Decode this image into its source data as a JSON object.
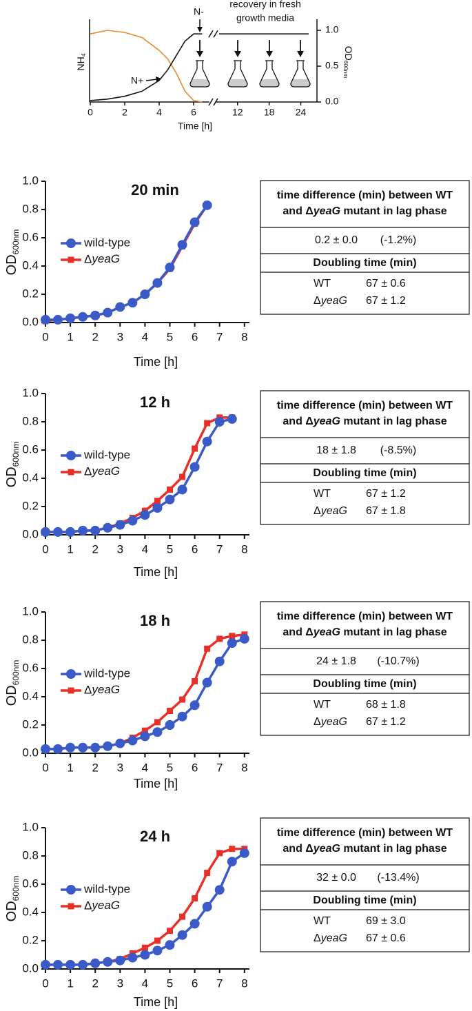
{
  "chart_data": [
    {
      "type": "line",
      "ylabel": {
        "text": "NH",
        "sub": "4"
      },
      "y2label": {
        "text": "OD",
        "sub": "600nm"
      },
      "xlabel": "Time [h]",
      "x": [
        0,
        1,
        2,
        3,
        4,
        4.5,
        5,
        5.5,
        6,
        6.5,
        7.5,
        8.5,
        25.5
      ],
      "xlim": [
        0,
        25.5
      ],
      "xbreak": [
        6.5,
        8.5
      ],
      "xticks": [
        0,
        2,
        4,
        6,
        12,
        18,
        24
      ],
      "y2lim": [
        0,
        1
      ],
      "y2ticks": [
        {
          "value": 0,
          "label": "0.0"
        },
        0.5,
        {
          "value": 1,
          "label": "1.0"
        }
      ],
      "series": [
        {
          "color": "#e8892e",
          "values": [
            0.95,
            1.0,
            0.97,
            0.9,
            0.72,
            0.6,
            0.4,
            0.15,
            0.02,
            0,
            null,
            null,
            null
          ]
        },
        {
          "color": "#111111",
          "axis": "y2",
          "values": [
            0.02,
            0.04,
            0.08,
            0.15,
            0.3,
            0.45,
            0.65,
            0.85,
            0.95,
            0.95,
            null,
            0.95,
            0.95
          ]
        }
      ],
      "annotations": [
        "N+",
        "N-",
        "recovery in fresh",
        "growth media"
      ]
    },
    {
      "type": "line",
      "title": "20 min",
      "xlabel": "Time [h]",
      "ylabel": {
        "text": "OD",
        "sub": "600nm"
      },
      "x": [
        0,
        0.5,
        1,
        1.5,
        2,
        2.5,
        3,
        3.5,
        4,
        4.5,
        5,
        5.5,
        6,
        6.5
      ],
      "xlim": [
        0,
        8.2
      ],
      "xticks": [
        0,
        1,
        2,
        3,
        4,
        5,
        6,
        7,
        8
      ],
      "ylim": [
        0,
        1
      ],
      "yticks": [
        {
          "value": 0,
          "label": "0.0"
        },
        0.2,
        0.4,
        0.6,
        0.8,
        {
          "value": 1,
          "label": "1.0"
        }
      ],
      "series": [
        {
          "name": "wild-type",
          "color": "#3a5bc7",
          "values": [
            0.02,
            0.02,
            0.03,
            0.04,
            0.05,
            0.07,
            0.11,
            0.14,
            0.2,
            0.28,
            0.39,
            0.55,
            0.71,
            0.83
          ]
        },
        {
          "name": "ΔyeaG",
          "color": "#e8302a",
          "values": [
            0.01,
            0.02,
            0.03,
            0.04,
            0.05,
            0.07,
            0.11,
            0.14,
            0.2,
            0.28,
            0.38,
            0.54,
            0.7,
            0.83
          ]
        }
      ]
    },
    {
      "type": "line",
      "title": "12 h",
      "xlabel": "Time [h]",
      "ylabel": {
        "text": "OD",
        "sub": "600nm"
      },
      "x": [
        0,
        0.5,
        1,
        1.5,
        2,
        2.5,
        3,
        3.5,
        4,
        4.5,
        5,
        5.5,
        6,
        6.5,
        7,
        7.5
      ],
      "xlim": [
        0,
        8.2
      ],
      "xticks": [
        0,
        1,
        2,
        3,
        4,
        5,
        6,
        7,
        8
      ],
      "ylim": [
        0,
        1
      ],
      "yticks": [
        {
          "value": 0,
          "label": "0.0"
        },
        0.2,
        0.4,
        0.6,
        0.8,
        {
          "value": 1,
          "label": "1.0"
        }
      ],
      "series": [
        {
          "name": "wild-type",
          "color": "#3a5bc7",
          "values": [
            0.02,
            0.02,
            0.02,
            0.03,
            0.03,
            0.05,
            0.07,
            0.1,
            0.14,
            0.19,
            0.25,
            0.32,
            0.48,
            0.66,
            0.8,
            0.82
          ]
        },
        {
          "name": "ΔyeaG",
          "color": "#e8302a",
          "values": [
            0.02,
            0.02,
            0.02,
            0.03,
            0.03,
            0.05,
            0.08,
            0.12,
            0.17,
            0.24,
            0.32,
            0.41,
            0.61,
            0.79,
            0.83,
            0.83
          ]
        }
      ]
    },
    {
      "type": "line",
      "title": "18 h",
      "xlabel": "Time [h]",
      "ylabel": {
        "text": "OD",
        "sub": "600nm"
      },
      "x": [
        0,
        0.5,
        1,
        1.5,
        2,
        2.5,
        3,
        3.5,
        4,
        4.5,
        5,
        5.5,
        6,
        6.5,
        7,
        7.5,
        8
      ],
      "xlim": [
        0,
        8.2
      ],
      "xticks": [
        0,
        1,
        2,
        3,
        4,
        5,
        6,
        7,
        8
      ],
      "ylim": [
        0,
        1
      ],
      "yticks": [
        {
          "value": 0,
          "label": "0.0"
        },
        0.2,
        0.4,
        0.6,
        0.8,
        {
          "value": 1,
          "label": "1.0"
        }
      ],
      "series": [
        {
          "name": "wild-type",
          "color": "#3a5bc7",
          "values": [
            0.03,
            0.03,
            0.04,
            0.04,
            0.04,
            0.05,
            0.07,
            0.09,
            0.12,
            0.15,
            0.2,
            0.26,
            0.34,
            0.5,
            0.65,
            0.78,
            0.81
          ]
        },
        {
          "name": "ΔyeaG",
          "color": "#e8302a",
          "values": [
            0.03,
            0.03,
            0.04,
            0.04,
            0.04,
            0.05,
            0.07,
            0.11,
            0.16,
            0.22,
            0.3,
            0.38,
            0.51,
            0.74,
            0.81,
            0.83,
            0.84
          ]
        }
      ]
    },
    {
      "type": "line",
      "title": "24 h",
      "xlabel": "Time [h]",
      "ylabel": {
        "text": "OD",
        "sub": "600nm"
      },
      "x": [
        0,
        0.5,
        1,
        1.5,
        2,
        2.5,
        3,
        3.5,
        4,
        4.5,
        5,
        5.5,
        6,
        6.5,
        7,
        7.5,
        8
      ],
      "xlim": [
        0,
        8.2
      ],
      "xticks": [
        0,
        1,
        2,
        3,
        4,
        5,
        6,
        7,
        8
      ],
      "ylim": [
        0,
        1
      ],
      "yticks": [
        {
          "value": 0,
          "label": "0.0"
        },
        0.2,
        0.4,
        0.6,
        0.8,
        {
          "value": 1,
          "label": "1.0"
        }
      ],
      "series": [
        {
          "name": "wild-type",
          "color": "#3a5bc7",
          "values": [
            0.03,
            0.03,
            0.03,
            0.03,
            0.04,
            0.05,
            0.06,
            0.08,
            0.1,
            0.13,
            0.17,
            0.24,
            0.32,
            0.44,
            0.56,
            0.76,
            0.82
          ]
        },
        {
          "name": "ΔyeaG",
          "color": "#e8302a",
          "values": [
            0.03,
            0.03,
            0.03,
            0.03,
            0.04,
            0.05,
            0.07,
            0.11,
            0.15,
            0.2,
            0.27,
            0.37,
            0.5,
            0.68,
            0.82,
            0.85,
            0.85
          ]
        }
      ]
    }
  ],
  "tables": [
    {
      "header": [
        "time difference (min) between WT",
        "and ΔyeaG mutant in lag phase"
      ],
      "lag": [
        "0.2 ± 0.0",
        "(-1.2%)"
      ],
      "doubling_title": "Doubling time (min)",
      "rows": [
        [
          "WT",
          "67 ± 0.6"
        ],
        [
          "ΔyeaG",
          "67 ± 1.2"
        ]
      ]
    },
    {
      "header": [
        "time difference (min) between WT",
        "and ΔyeaG mutant in lag phase"
      ],
      "lag": [
        "18 ± 1.8",
        "(-8.5%)"
      ],
      "doubling_title": "Doubling time (min)",
      "rows": [
        [
          "WT",
          "67 ± 1.2"
        ],
        [
          "ΔyeaG",
          "67 ± 1.8"
        ]
      ]
    },
    {
      "header": [
        "time difference (min) between WT",
        "and ΔyeaG mutant in lag phase"
      ],
      "lag": [
        "24 ± 1.8",
        "(-10.7%)"
      ],
      "doubling_title": "Doubling time (min)",
      "rows": [
        [
          "WT",
          "68 ± 1.8"
        ],
        [
          "ΔyeaG",
          "67 ± 1.2"
        ]
      ]
    },
    {
      "header": [
        "time difference (min) between WT",
        "and ΔyeaG mutant in lag phase"
      ],
      "lag": [
        "32 ± 0.0",
        "(-13.4%)"
      ],
      "doubling_title": "Doubling time (min)",
      "rows": [
        [
          "WT",
          "69 ± 3.0"
        ],
        [
          "ΔyeaG",
          "67 ± 0.6"
        ]
      ]
    }
  ]
}
